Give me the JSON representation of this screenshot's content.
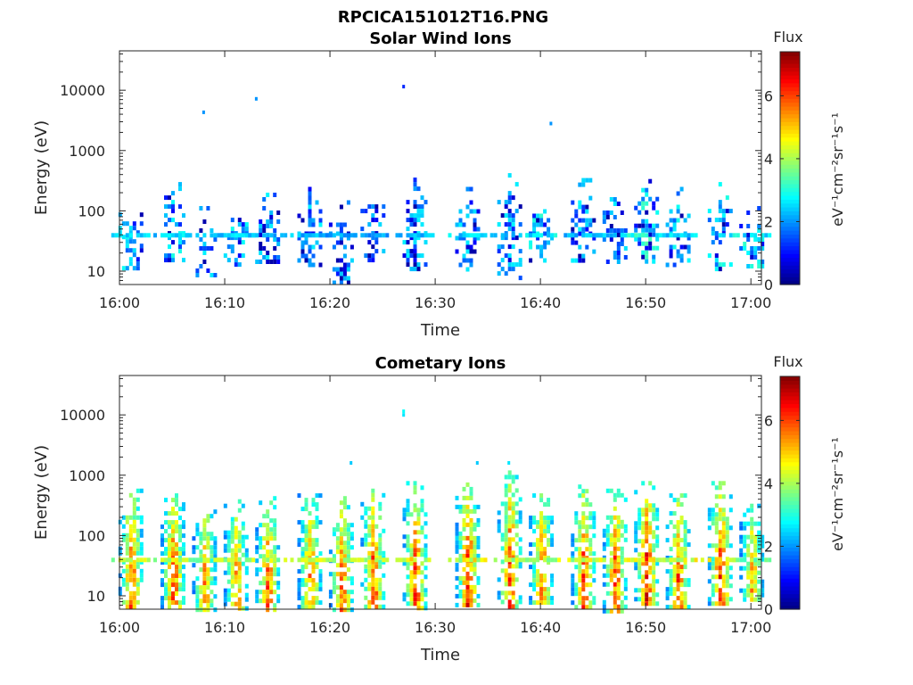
{
  "figure": {
    "title": "RPCICA151012T16.PNG"
  },
  "chart_data": [
    {
      "type": "heatmap",
      "title": "Solar Wind Ions",
      "xlabel": "Time",
      "ylabel": "Energy (eV)",
      "x_range": [
        "16:00",
        "17:01"
      ],
      "x_ticks": [
        "16:00",
        "16:10",
        "16:20",
        "16:30",
        "16:40",
        "16:50",
        "17:00"
      ],
      "y_scale": "log",
      "y_range": [
        6,
        45000
      ],
      "y_ticks": [
        10,
        100,
        1000,
        10000
      ],
      "y_tick_labels": [
        "10",
        "100",
        "1000",
        "10000"
      ],
      "colorbar": {
        "label": "Flux",
        "unit": "eV⁻¹cm⁻²sr⁻¹s⁻¹",
        "range": [
          0,
          7.4
        ],
        "ticks": [
          0,
          2,
          4,
          6
        ],
        "colormap": "jet"
      },
      "bursts": [
        {
          "t": "16:01",
          "emin": 12,
          "emax": 220,
          "peak": 2.6
        },
        {
          "t": "16:05",
          "emin": 15,
          "emax": 300,
          "peak": 2.6
        },
        {
          "t": "16:08",
          "emin": 8,
          "emax": 120,
          "peak": 2.4
        },
        {
          "t": "16:11",
          "emin": 12,
          "emax": 180,
          "peak": 2.6
        },
        {
          "t": "16:14",
          "emin": 15,
          "emax": 200,
          "peak": 2.4
        },
        {
          "t": "16:18",
          "emin": 12,
          "emax": 250,
          "peak": 2.4
        },
        {
          "t": "16:21",
          "emin": 6,
          "emax": 150,
          "peak": 2.2
        },
        {
          "t": "16:24",
          "emin": 15,
          "emax": 300,
          "peak": 2.2
        },
        {
          "t": "16:28",
          "emin": 10,
          "emax": 500,
          "peak": 2.4
        },
        {
          "t": "16:33",
          "emin": 10,
          "emax": 250,
          "peak": 2.6
        },
        {
          "t": "16:37",
          "emin": 8,
          "emax": 500,
          "peak": 2.4
        },
        {
          "t": "16:40",
          "emin": 15,
          "emax": 150,
          "peak": 2.8
        },
        {
          "t": "16:44",
          "emin": 15,
          "emax": 350,
          "peak": 2.4
        },
        {
          "t": "16:47",
          "emin": 15,
          "emax": 200,
          "peak": 2.4
        },
        {
          "t": "16:50",
          "emin": 15,
          "emax": 400,
          "peak": 3.0
        },
        {
          "t": "16:53",
          "emin": 12,
          "emax": 250,
          "peak": 2.6
        },
        {
          "t": "16:57",
          "emin": 10,
          "emax": 300,
          "peak": 2.8
        },
        {
          "t": "17:00",
          "emin": 10,
          "emax": 120,
          "peak": 2.8
        }
      ],
      "isolated_points": [
        {
          "t": "16:08",
          "e": 4300,
          "flux": 2.0
        },
        {
          "t": "16:13",
          "e": 7200,
          "flux": 2.0
        },
        {
          "t": "16:27",
          "e": 11500,
          "flux": 1.2
        },
        {
          "t": "16:41",
          "e": 2800,
          "flux": 2.0
        }
      ]
    },
    {
      "type": "heatmap",
      "title": "Cometary Ions",
      "xlabel": "Time",
      "ylabel": "Energy (eV)",
      "x_range": [
        "16:00",
        "17:01"
      ],
      "x_ticks": [
        "16:00",
        "16:10",
        "16:20",
        "16:30",
        "16:40",
        "16:50",
        "17:00"
      ],
      "y_scale": "log",
      "y_range": [
        6,
        45000
      ],
      "y_ticks": [
        10,
        100,
        1000,
        10000
      ],
      "y_tick_labels": [
        "10",
        "100",
        "1000",
        "10000"
      ],
      "colorbar": {
        "label": "Flux",
        "unit": "eV⁻¹cm⁻²sr⁻¹s⁻¹",
        "range": [
          0,
          7.4
        ],
        "ticks": [
          0,
          2,
          4,
          6
        ],
        "colormap": "jet"
      },
      "bursts": [
        {
          "t": "16:01",
          "emin": 7,
          "emax": 600,
          "peak": 6.2
        },
        {
          "t": "16:05",
          "emin": 7,
          "emax": 500,
          "peak": 6.4
        },
        {
          "t": "16:08",
          "emin": 6,
          "emax": 450,
          "peak": 5.8
        },
        {
          "t": "16:11",
          "emin": 6,
          "emax": 400,
          "peak": 5.8
        },
        {
          "t": "16:14",
          "emin": 6,
          "emax": 450,
          "peak": 6.2
        },
        {
          "t": "16:18",
          "emin": 6,
          "emax": 500,
          "peak": 6.0
        },
        {
          "t": "16:21",
          "emin": 6,
          "emax": 450,
          "peak": 6.2
        },
        {
          "t": "16:24",
          "emin": 7,
          "emax": 600,
          "peak": 6.4
        },
        {
          "t": "16:28",
          "emin": 6,
          "emax": 800,
          "peak": 6.4
        },
        {
          "t": "16:33",
          "emin": 7,
          "emax": 900,
          "peak": 6.6
        },
        {
          "t": "16:37",
          "emin": 7,
          "emax": 1200,
          "peak": 6.4
        },
        {
          "t": "16:40",
          "emin": 8,
          "emax": 500,
          "peak": 6.2
        },
        {
          "t": "16:44",
          "emin": 7,
          "emax": 700,
          "peak": 6.4
        },
        {
          "t": "16:47",
          "emin": 6,
          "emax": 600,
          "peak": 6.4
        },
        {
          "t": "16:50",
          "emin": 7,
          "emax": 800,
          "peak": 6.8
        },
        {
          "t": "16:53",
          "emin": 7,
          "emax": 500,
          "peak": 6.4
        },
        {
          "t": "16:57",
          "emin": 7,
          "emax": 800,
          "peak": 6.6
        },
        {
          "t": "17:00",
          "emin": 8,
          "emax": 400,
          "peak": 5.6
        }
      ],
      "isolated_points": [
        {
          "t": "16:27",
          "e": 11500,
          "flux": 2.8
        },
        {
          "t": "16:27",
          "e": 10000,
          "flux": 2.6
        },
        {
          "t": "16:22",
          "e": 1600,
          "flux": 2.4
        },
        {
          "t": "16:34",
          "e": 1600,
          "flux": 2.4
        },
        {
          "t": "16:37",
          "e": 1600,
          "flux": 2.6
        }
      ]
    }
  ]
}
